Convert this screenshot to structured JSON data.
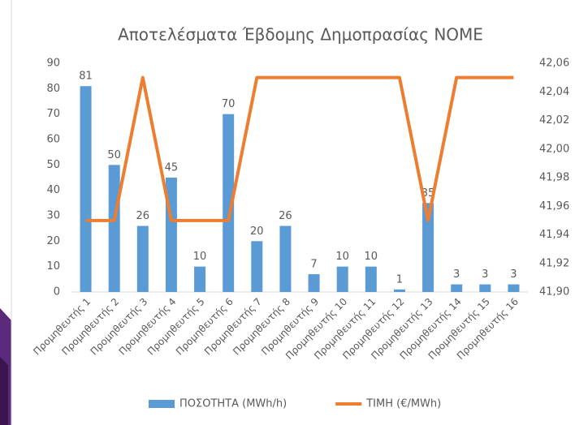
{
  "chart_data": {
    "type": "bar-line",
    "title": "Αποτελέσματα Έβδομης Δημοπρασίας ΝΟΜΕ",
    "categories": [
      "Προμηθευτής 1",
      "Προμηθευτής 2",
      "Προμηθευτής 3",
      "Προμηθευτής 4",
      "Προμηθευτής 5",
      "Προμηθευτής 6",
      "Προμηθευτής 7",
      "Προμηθευτής 8",
      "Προμηθευτής 9",
      "Προμηθευτής 10",
      "Προμηθευτής 11",
      "Προμηθευτής 12",
      "Προμηθευτής 13",
      "Προμηθευτής 14",
      "Προμηθευτής 15",
      "Προμηθευτής 16"
    ],
    "series": [
      {
        "name": "ΠΟΣΟΤΗΤΑ (MWh/h)",
        "color": "#5b9bd5",
        "type": "bar",
        "values": [
          81,
          50,
          26,
          45,
          10,
          70,
          20,
          26,
          7,
          10,
          10,
          1,
          35,
          3,
          3,
          3
        ]
      },
      {
        "name": "ΤΙΜΗ (€/MWh)",
        "color": "#ed7d31",
        "type": "line",
        "axis": "y2",
        "values": [
          41.95,
          41.95,
          42.05,
          41.95,
          41.95,
          41.95,
          42.05,
          42.05,
          42.05,
          42.05,
          42.05,
          42.05,
          41.95,
          42.05,
          42.05,
          42.05
        ]
      }
    ],
    "ylim": [
      0,
      90
    ],
    "yticks": [
      0,
      10,
      20,
      30,
      40,
      50,
      60,
      70,
      80,
      90
    ],
    "y2lim": [
      41.9,
      42.06
    ],
    "y2ticks": [
      {
        "value": 41.9,
        "label": "41,90"
      },
      {
        "value": 41.92,
        "label": "41,92"
      },
      {
        "value": 41.94,
        "label": "41,94"
      },
      {
        "value": 41.96,
        "label": "41,96"
      },
      {
        "value": 41.98,
        "label": "41,98"
      },
      {
        "value": 42.0,
        "label": "42,00"
      },
      {
        "value": 42.02,
        "label": "42,02"
      },
      {
        "value": 42.04,
        "label": "42,04"
      },
      {
        "value": 42.06,
        "label": "42,06"
      }
    ],
    "legend": "bottom"
  }
}
